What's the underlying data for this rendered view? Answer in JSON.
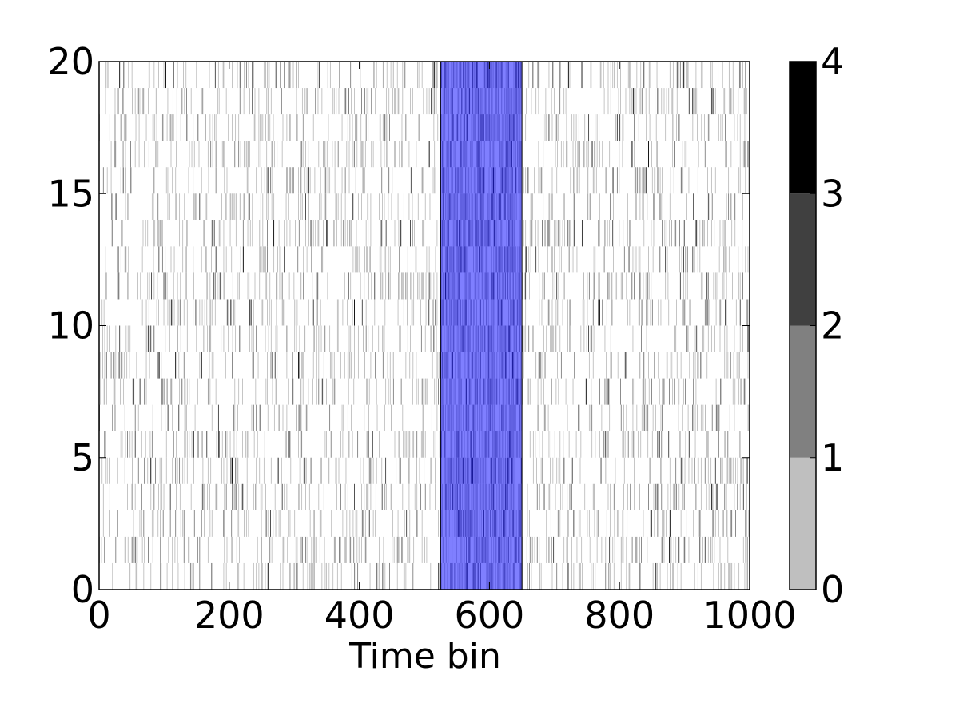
{
  "chart_data": {
    "type": "heatmap",
    "title": "",
    "xlabel": "Time bin",
    "ylabel": "",
    "xlim": [
      0,
      1000
    ],
    "ylim": [
      0,
      20
    ],
    "x_ticks": [
      "0",
      "200",
      "400",
      "600",
      "800",
      "1000"
    ],
    "y_ticks": [
      "0",
      "5",
      "10",
      "15",
      "20"
    ],
    "rows": 20,
    "time_bins": 1000,
    "grid": false,
    "highlight_region": {
      "x_start": 525,
      "x_end": 650,
      "color": "#0000ff",
      "alpha": 0.5
    },
    "spike_density": {
      "outside_region": 0.15,
      "inside_region": 0.5
    },
    "colorbar": {
      "ticks": [
        "0",
        "1",
        "2",
        "3",
        "4"
      ],
      "levels": [
        {
          "from": 0,
          "to": 1,
          "color": "#bfbfbf"
        },
        {
          "from": 1,
          "to": 2,
          "color": "#808080"
        },
        {
          "from": 2,
          "to": 3,
          "color": "#404040"
        },
        {
          "from": 3,
          "to": 4,
          "color": "#000000"
        }
      ]
    }
  }
}
